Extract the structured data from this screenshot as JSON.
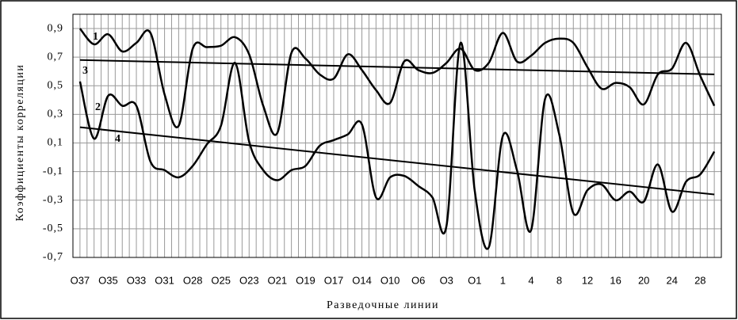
{
  "chart_data": {
    "type": "line",
    "y_label": "Коэффициенты корреляции",
    "x_label": "Разведочные линии",
    "categories": [
      "О37",
      null,
      "О35",
      null,
      "О33",
      null,
      "О31",
      null,
      "О28",
      null,
      "О25",
      null,
      "О23",
      null,
      "О21",
      null,
      "О19",
      null,
      "О17",
      null,
      "О14",
      null,
      "О10",
      null,
      "О6",
      null,
      "О3",
      null,
      "О1",
      null,
      "1",
      null,
      "4",
      null,
      "8",
      null,
      "12",
      null,
      "16",
      null,
      "20",
      null,
      "24",
      null,
      "28",
      null
    ],
    "series": [
      {
        "name": "1",
        "color": "#000000",
        "values": [
          0.9,
          0.79,
          0.86,
          0.74,
          0.8,
          0.87,
          0.44,
          0.22,
          0.76,
          0.77,
          0.78,
          0.84,
          0.72,
          0.36,
          0.17,
          0.73,
          0.69,
          0.58,
          0.55,
          0.72,
          0.61,
          0.47,
          0.38,
          0.67,
          0.61,
          0.59,
          0.66,
          0.76,
          0.61,
          0.66,
          0.87,
          0.67,
          0.71,
          0.8,
          0.83,
          0.8,
          0.63,
          0.48,
          0.52,
          0.49,
          0.37,
          0.58,
          0.62,
          0.8,
          0.57,
          0.36
        ]
      },
      {
        "name": "2",
        "color": "#000000",
        "values": [
          0.53,
          0.13,
          0.43,
          0.36,
          0.36,
          -0.03,
          -0.09,
          -0.14,
          -0.06,
          0.09,
          0.22,
          0.66,
          0.11,
          -0.09,
          -0.16,
          -0.09,
          -0.06,
          0.08,
          0.12,
          0.16,
          0.23,
          -0.28,
          -0.14,
          -0.13,
          -0.2,
          -0.28,
          -0.48,
          0.8,
          -0.23,
          -0.63,
          0.15,
          -0.09,
          -0.51,
          0.41,
          0.16,
          -0.39,
          -0.23,
          -0.19,
          -0.3,
          -0.24,
          -0.31,
          -0.05,
          -0.38,
          -0.17,
          -0.12,
          0.04
        ]
      }
    ],
    "trendlines": [
      {
        "name": "3",
        "color": "#000000",
        "values": [
          0.68,
          0.58
        ]
      },
      {
        "name": "4",
        "color": "#000000",
        "values": [
          0.21,
          -0.26
        ]
      }
    ],
    "ylim": [
      -0.7,
      1.0
    ],
    "yticks": [
      {
        "value": -0.7,
        "label": "-0,7"
      },
      {
        "value": -0.5,
        "label": "-0,5"
      },
      {
        "value": -0.3,
        "label": "-0,3"
      },
      {
        "value": -0.1,
        "label": "-0,1"
      },
      {
        "value": 0.1,
        "label": "0,1"
      },
      {
        "value": 0.3,
        "label": "0,3"
      },
      {
        "value": 0.5,
        "label": "0,5"
      },
      {
        "value": 0.7,
        "label": "0,7"
      },
      {
        "value": 0.9,
        "label": "0,9"
      }
    ],
    "grid": true
  }
}
